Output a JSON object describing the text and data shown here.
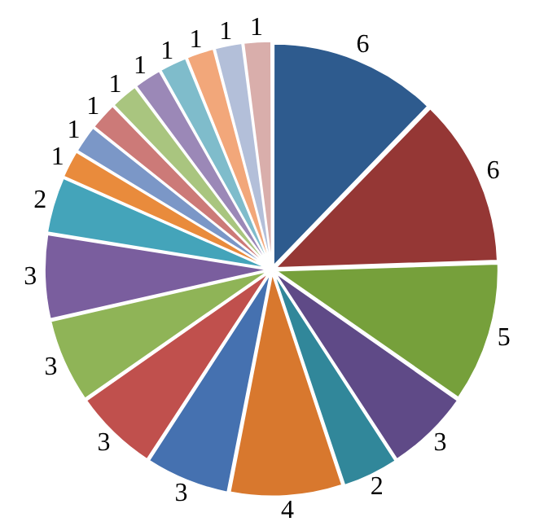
{
  "chart_data": {
    "type": "pie",
    "categories": [
      null,
      null,
      null,
      null,
      null,
      null,
      null,
      null,
      null,
      null,
      null,
      null,
      null,
      null,
      null,
      null,
      null,
      null,
      null,
      null
    ],
    "values": [
      6,
      6,
      5,
      3,
      2,
      4,
      3,
      3,
      3,
      3,
      2,
      1,
      1,
      1,
      1,
      1,
      1,
      1,
      1,
      1
    ],
    "colors": [
      "#2e5b8e",
      "#953735",
      "#76a03b",
      "#5f4a87",
      "#31879a",
      "#d8782e",
      "#4571b0",
      "#c0504d",
      "#8fb457",
      "#7a5e9e",
      "#44a4ba",
      "#e98b3c",
      "#7b97c7",
      "#cc7a78",
      "#a9c57f",
      "#9b88b7",
      "#7fbccb",
      "#f2a77a",
      "#b3bfd9",
      "#d9aeab"
    ],
    "data_labels": true,
    "legend": false
  }
}
